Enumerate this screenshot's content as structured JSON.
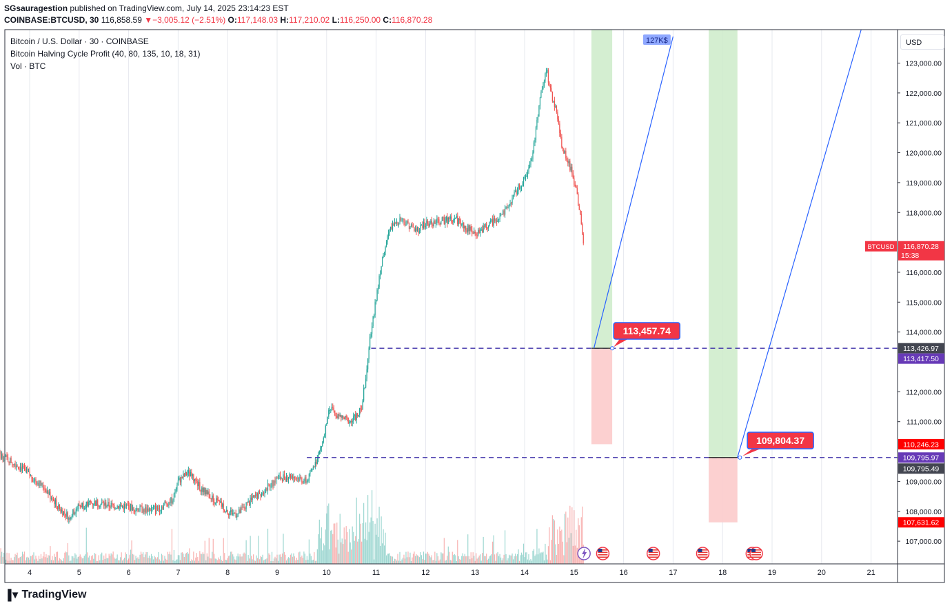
{
  "header": {
    "author": "SGsauragestion",
    "published_text": "published on TradingView.com, July 14, 2025 23:14:23 EST",
    "symbol": "COINBASE:BTCUSD, 30",
    "last": "116,858.59",
    "change_arrow": "▼",
    "change": "−3,005.12 (−2.51%)",
    "o_label": "O:",
    "o_value": "117,148.03",
    "h_label": "H:",
    "h_value": "117,210.02",
    "l_label": "L:",
    "l_value": "116,250.00",
    "c_label": "C:",
    "c_value": "116,870.28"
  },
  "legend": {
    "title": "Bitcoin / U.S. Dollar · 30 · COINBASE",
    "indicator": "Bitcoin Halving Cycle Profit (40, 80, 135, 10, 18, 31)",
    "volume": "Vol · BTC"
  },
  "price_axis": {
    "currency": "USD",
    "ticks": [
      "123,000.00",
      "122,000.00",
      "121,000.00",
      "120,000.00",
      "119,000.00",
      "118,000.00",
      "116,000.00",
      "115,000.00",
      "114,000.00",
      "112,000.00",
      "111,000.00",
      "109,000.00",
      "108,000.00",
      "107,000.00"
    ],
    "badges": [
      {
        "text": "116,870.28",
        "sub": "15:38",
        "color": "#f23645",
        "symbol": "BTCUSD"
      },
      {
        "text": "113,426.97",
        "color": "#434651"
      },
      {
        "text": "113,417.50",
        "color": "#673ab7"
      },
      {
        "text": "110,246.23",
        "color": "#ff0000"
      },
      {
        "text": "109,795.97",
        "color": "#673ab7"
      },
      {
        "text": "109,795.49",
        "color": "#434651"
      },
      {
        "text": "107,631.62",
        "color": "#ff0000"
      }
    ]
  },
  "time_axis": {
    "labels": [
      "4",
      "5",
      "6",
      "7",
      "8",
      "9",
      "10",
      "11",
      "12",
      "13",
      "14",
      "15",
      "16",
      "17",
      "18",
      "19",
      "20",
      "21"
    ]
  },
  "annotations": {
    "callout_1": "113,457.74",
    "callout_2": "109,804.37",
    "target_label": "127K$"
  },
  "colors": {
    "up": "#26a69a",
    "down": "#ef5350",
    "accent": "#2962ff",
    "dashed": "#3d2ea8",
    "profit_zone": "#cdebc9",
    "loss_zone": "#fccbcb",
    "callout": "#f23645"
  },
  "brand": {
    "name": "TradingView"
  },
  "chart_data": {
    "type": "candlestick",
    "title": "Bitcoin / U.S. Dollar · 30 · COINBASE",
    "timeframe": "30",
    "x_range": [
      "3",
      "21.5"
    ],
    "ylim": [
      106500,
      123800
    ],
    "path": [
      [
        3.0,
        109600
      ],
      [
        3.2,
        110100
      ],
      [
        3.5,
        109800
      ],
      [
        3.8,
        109500
      ],
      [
        4.0,
        109200
      ],
      [
        4.3,
        108800
      ],
      [
        4.6,
        108100
      ],
      [
        4.8,
        107800
      ],
      [
        5.0,
        108200
      ],
      [
        5.3,
        108300
      ],
      [
        5.6,
        108200
      ],
      [
        6.0,
        108150
      ],
      [
        6.3,
        108050
      ],
      [
        6.6,
        108100
      ],
      [
        6.9,
        108400
      ],
      [
        7.0,
        109000
      ],
      [
        7.2,
        109300
      ],
      [
        7.5,
        108700
      ],
      [
        7.8,
        108300
      ],
      [
        8.0,
        108000
      ],
      [
        8.2,
        107900
      ],
      [
        8.5,
        108400
      ],
      [
        8.8,
        108800
      ],
      [
        9.0,
        109100
      ],
      [
        9.3,
        109200
      ],
      [
        9.6,
        109000
      ],
      [
        9.8,
        109700
      ],
      [
        9.95,
        110500
      ],
      [
        10.05,
        111500
      ],
      [
        10.2,
        111200
      ],
      [
        10.5,
        111000
      ],
      [
        10.7,
        111400
      ],
      [
        10.8,
        112600
      ],
      [
        10.85,
        113500
      ],
      [
        10.95,
        114600
      ],
      [
        11.05,
        115700
      ],
      [
        11.15,
        116700
      ],
      [
        11.3,
        117500
      ],
      [
        11.5,
        117800
      ],
      [
        11.8,
        117400
      ],
      [
        12.0,
        117600
      ],
      [
        12.3,
        117700
      ],
      [
        12.6,
        117800
      ],
      [
        12.8,
        117500
      ],
      [
        13.0,
        117300
      ],
      [
        13.3,
        117600
      ],
      [
        13.6,
        118000
      ],
      [
        13.8,
        118600
      ],
      [
        13.9,
        118900
      ],
      [
        14.0,
        119100
      ],
      [
        14.15,
        119800
      ],
      [
        14.25,
        121000
      ],
      [
        14.35,
        122200
      ],
      [
        14.45,
        122700
      ],
      [
        14.55,
        121900
      ],
      [
        14.65,
        121300
      ],
      [
        14.75,
        120300
      ],
      [
        14.85,
        119800
      ],
      [
        14.95,
        119400
      ],
      [
        15.05,
        118700
      ],
      [
        15.12,
        117900
      ],
      [
        15.2,
        116860
      ]
    ]
  }
}
